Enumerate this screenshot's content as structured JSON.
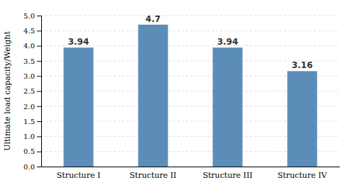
{
  "chart_data": {
    "type": "bar",
    "categories": [
      "Structure  I",
      "Structure  II",
      "Structure III",
      "Structure IV"
    ],
    "values": [
      3.94,
      4.7,
      3.94,
      3.16
    ],
    "color": "#5B8DB8",
    "data_labels": true,
    "ylabel": "Ultimate load capacity/Weight",
    "ylim": [
      0,
      5.0
    ],
    "yticks": [
      {
        "value": 0,
        "label": "0.0"
      },
      0.5,
      {
        "value": 1,
        "label": "1.0"
      },
      1.5,
      {
        "value": 2,
        "label": "2.0"
      },
      2.5,
      {
        "value": 3,
        "label": "3.0"
      },
      3.5,
      {
        "value": 4,
        "label": "4.0"
      },
      4.5,
      {
        "value": 5,
        "label": "5.0"
      }
    ],
    "grid": true
  }
}
